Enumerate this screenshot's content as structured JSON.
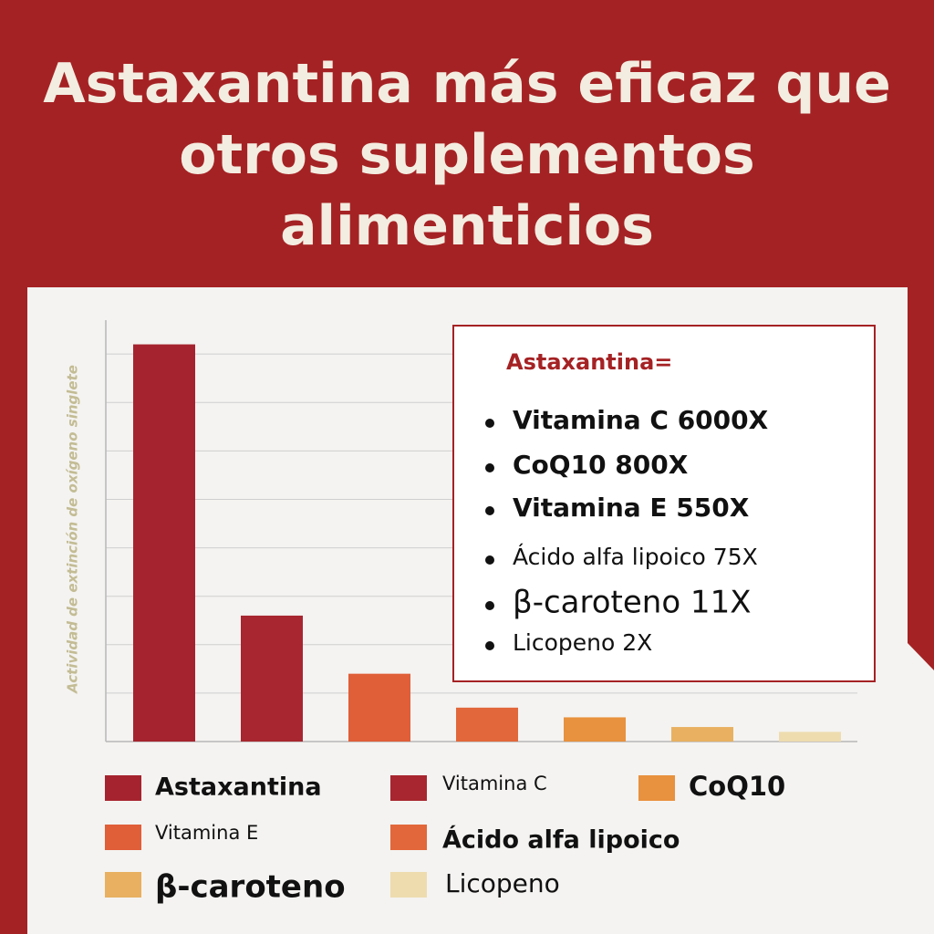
{
  "chart_data": {
    "type": "bar",
    "title": "Astaxantina más eficaz que otros suplementos alimenticios",
    "y_label": "Actividad de extinción de oxígeno singlete",
    "series": [
      {
        "name": "Astaxantina",
        "color": "#a5232e",
        "values": [
          8.2
        ]
      },
      {
        "name": "Vitamina C",
        "color": "#a8262f",
        "values": [
          2.6
        ]
      },
      {
        "name": "Vitamina E",
        "color": "#e05e38",
        "values": [
          1.4
        ]
      },
      {
        "name": "Ácido alfa lipoico",
        "color": "#e2673a",
        "values": [
          0.7
        ]
      },
      {
        "name": "CoQ10",
        "color": "#e8913e",
        "values": [
          0.5
        ]
      },
      {
        "name": "β-caroteno",
        "color": "#e8b060",
        "values": [
          0.3
        ]
      },
      {
        "name": "Licopeno",
        "color": "#eedcaf",
        "values": [
          0.2
        ]
      }
    ],
    "ylim": [
      0,
      8.7
    ],
    "yticks": [
      1,
      2,
      3,
      4,
      5,
      6,
      7,
      8
    ],
    "grid": true,
    "annotation": {
      "title": "Astaxantina=",
      "items": [
        "Vitamina C 6000X",
        "CoQ10 800X",
        "Vitamina E 550X",
        "Ácido alfa lipoico 75X",
        "β-caroteno 11X",
        "Licopeno 2X"
      ]
    }
  }
}
